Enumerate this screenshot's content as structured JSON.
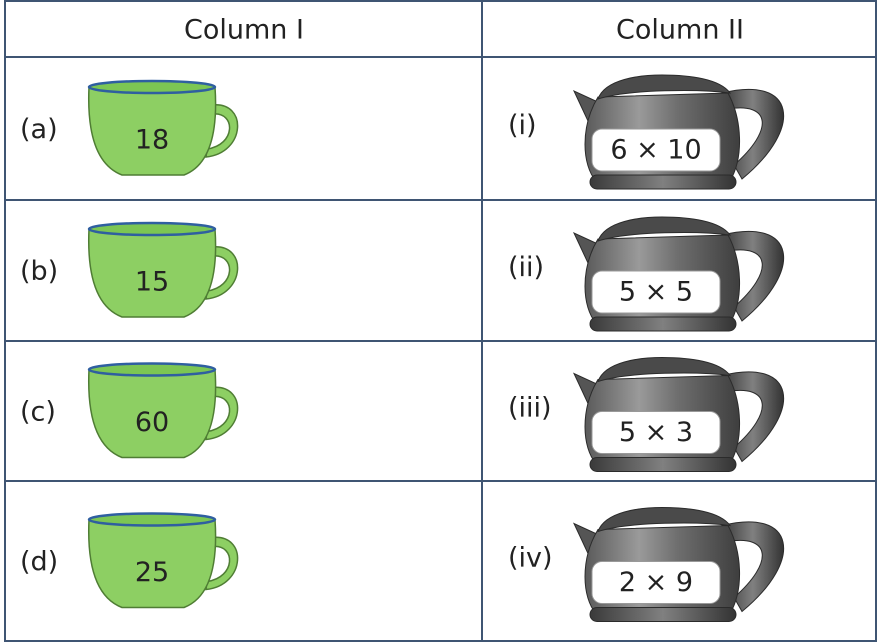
{
  "header": {
    "columns": [
      "Column I",
      "Column II"
    ]
  },
  "rows": [
    {
      "label": "(a)",
      "cup": "18",
      "match": "(i)",
      "kettle": "6 × 10"
    },
    {
      "label": "(b)",
      "cup": "15",
      "match": "(ii)",
      "kettle": "5 × 5"
    },
    {
      "label": "(c)",
      "cup": "60",
      "match": "(iii)",
      "kettle": "5 × 3"
    },
    {
      "label": "(d)",
      "cup": "25",
      "match": "(iv)",
      "kettle": "2 × 9"
    }
  ]
}
